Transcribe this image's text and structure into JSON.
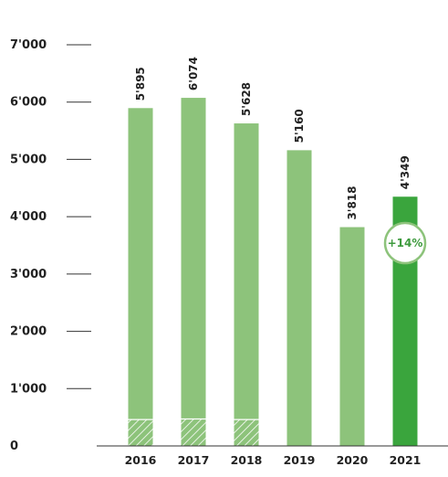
{
  "chart_data": {
    "type": "bar",
    "categories": [
      "2016",
      "2017",
      "2018",
      "2019",
      "2020",
      "2021"
    ],
    "values": [
      5895,
      6074,
      5628,
      5160,
      3818,
      4349
    ],
    "value_labels": [
      "5'895",
      "6'074",
      "5'628",
      "5'160",
      "3'818",
      "4'349"
    ],
    "hatched_portion": [
      460,
      470,
      460,
      0,
      0,
      0
    ],
    "highlight_index": 5,
    "ylim": [
      0,
      7000
    ],
    "yticks": [
      0,
      1000,
      2000,
      3000,
      4000,
      5000,
      6000,
      7000
    ],
    "ytick_labels": [
      "0",
      "1'000",
      "2'000",
      "3'000",
      "4'000",
      "5'000",
      "6'000",
      "7'000"
    ],
    "badge": "+14%",
    "colors": {
      "bar": "#8dc37b",
      "highlight": "#3aa53d",
      "badge_border": "#8dc37b",
      "badge_text": "#3d9a3d",
      "tick": "#333333"
    }
  }
}
